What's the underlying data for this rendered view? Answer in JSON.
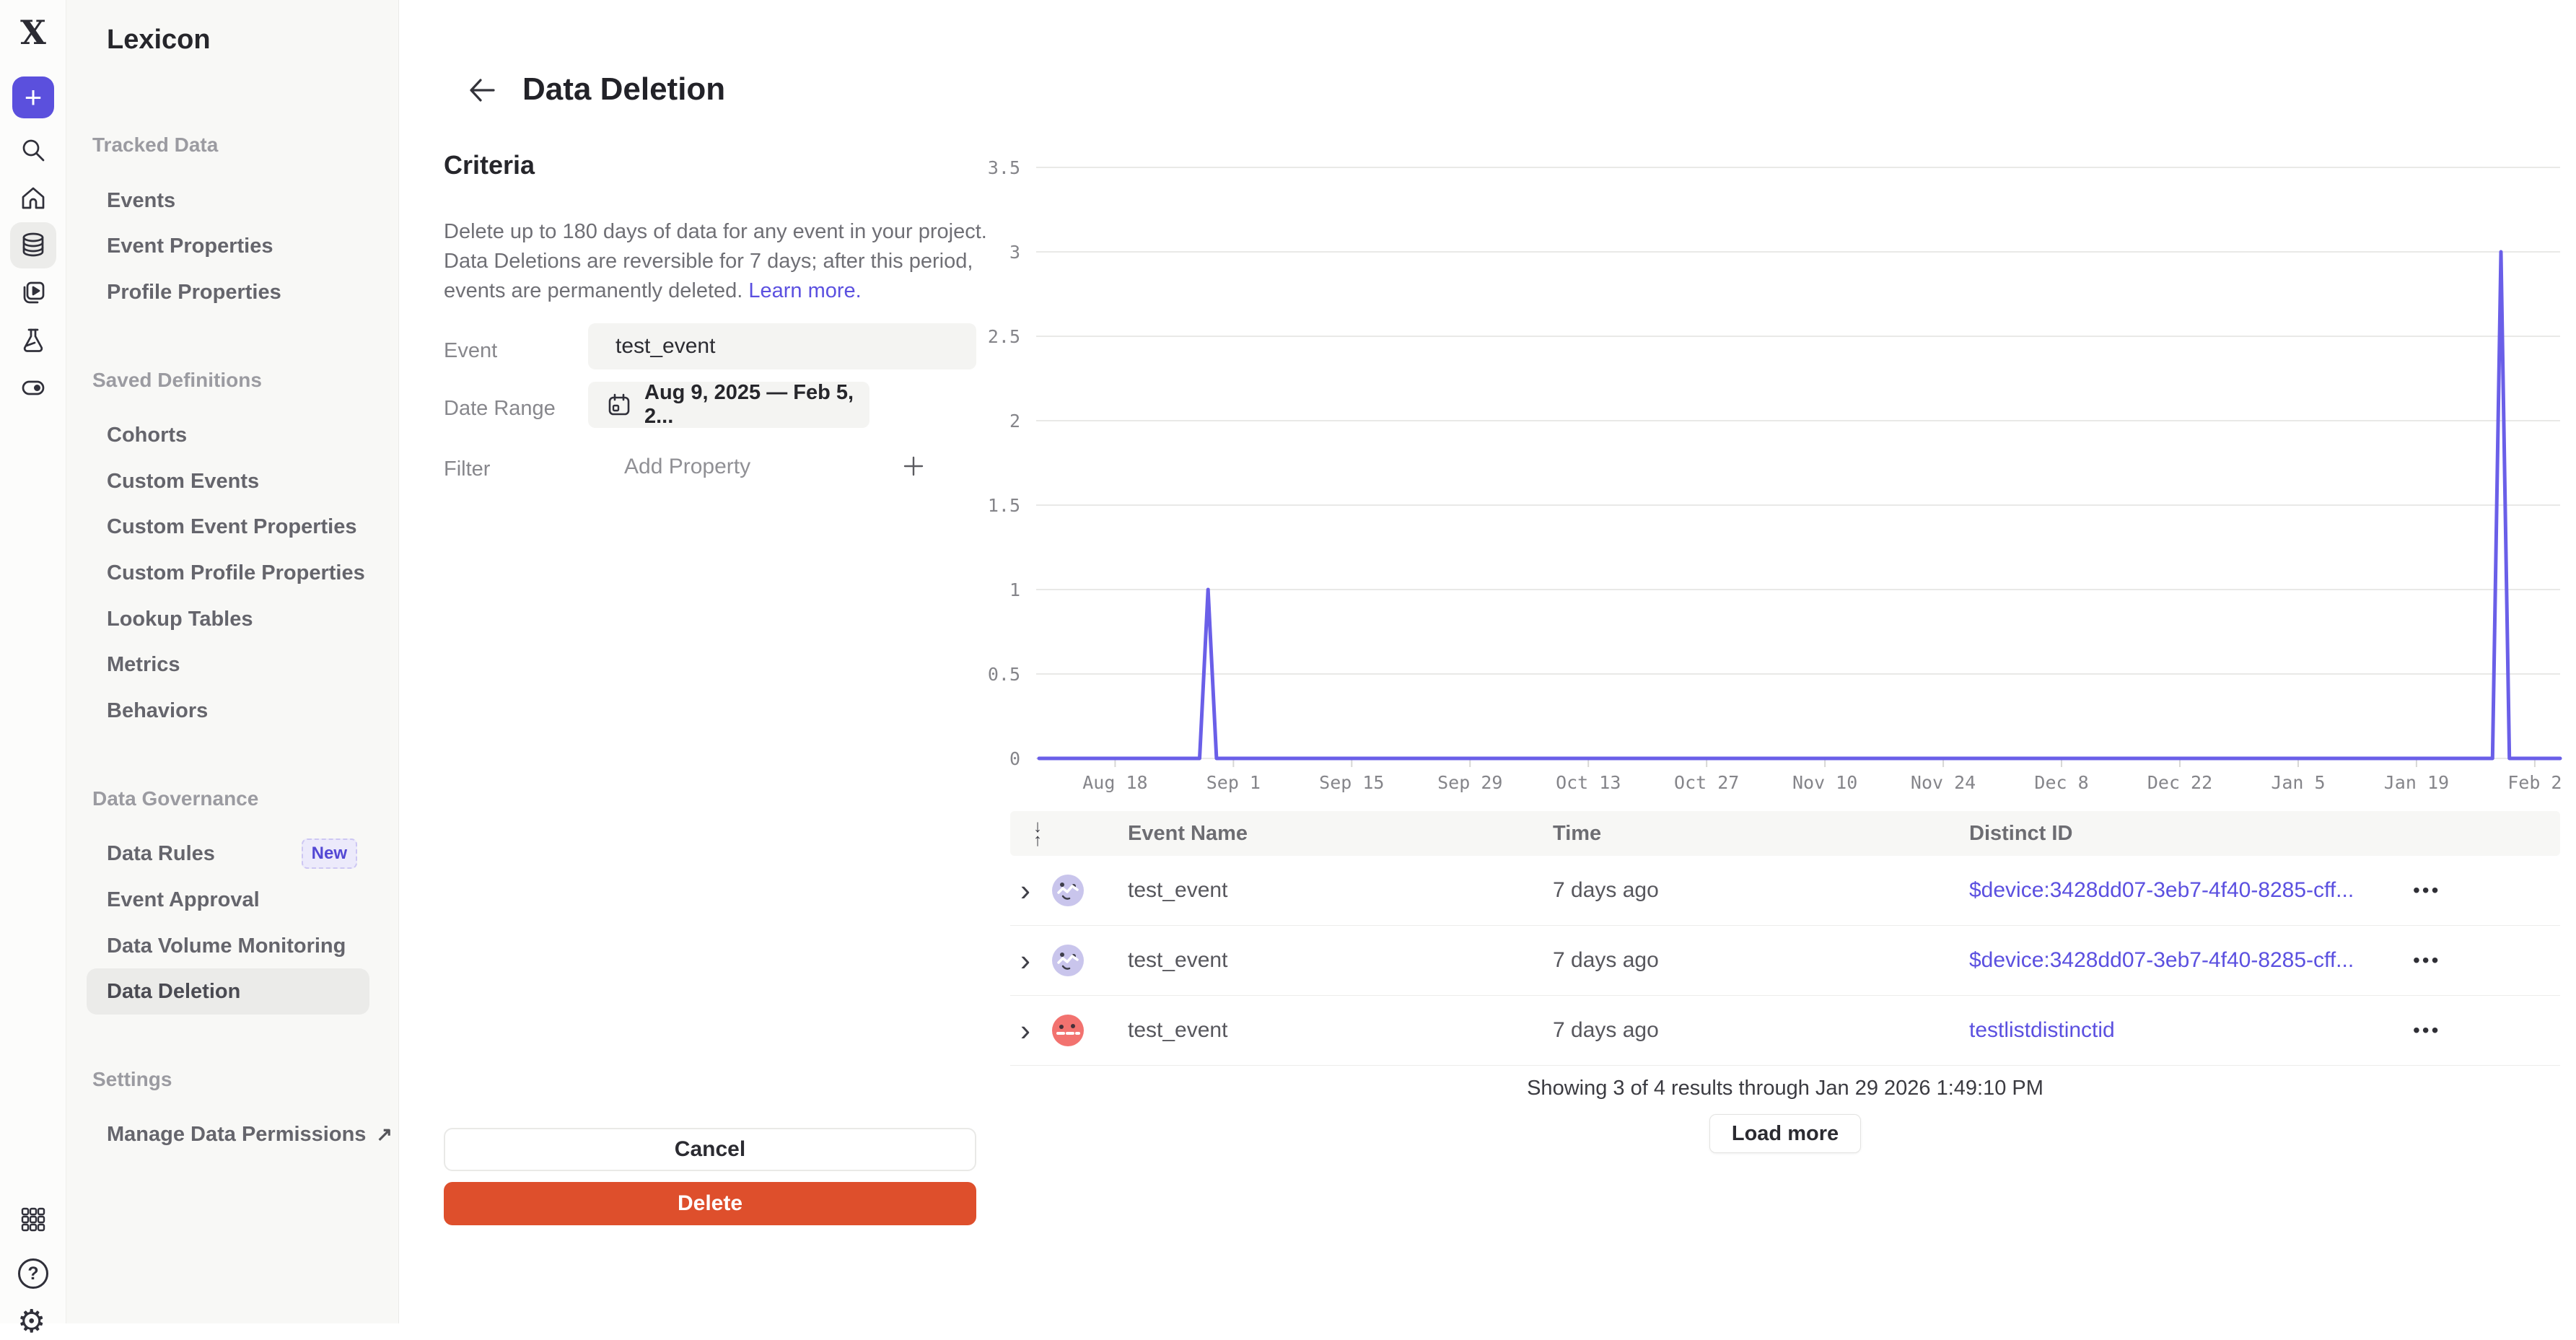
{
  "colors": {
    "accent_purple": "#5b50dd",
    "link_purple": "#5b50e0",
    "chart_line": "#6a5fe8",
    "delete_red": "#de4f2c",
    "new_badge_text": "#5348d4",
    "avatar_lavender": "#c9c5ec",
    "avatar_red": "#f2726f"
  },
  "icons": {
    "logo_glyph": "X",
    "plus": "+",
    "help": "?",
    "gear": "⚙",
    "external_link": "↗",
    "chevron_right": "›",
    "more_dots": "•••",
    "sort_down": "↓",
    "sort_up": "↑"
  },
  "sidebar": {
    "title": "Lexicon",
    "sections": [
      {
        "label": "Tracked Data",
        "items": [
          {
            "label": "Events"
          },
          {
            "label": "Event Properties"
          },
          {
            "label": "Profile Properties"
          }
        ]
      },
      {
        "label": "Saved Definitions",
        "items": [
          {
            "label": "Cohorts"
          },
          {
            "label": "Custom Events"
          },
          {
            "label": "Custom Event Properties"
          },
          {
            "label": "Custom Profile Properties"
          },
          {
            "label": "Lookup Tables"
          },
          {
            "label": "Metrics"
          },
          {
            "label": "Behaviors"
          }
        ]
      },
      {
        "label": "Data Governance",
        "items": [
          {
            "label": "Data Rules",
            "badge": "New"
          },
          {
            "label": "Event Approval"
          },
          {
            "label": "Data Volume Monitoring"
          },
          {
            "label": "Data Deletion",
            "selected": true
          }
        ]
      },
      {
        "label": "Settings",
        "items": [
          {
            "label": "Manage Data Permissions",
            "external": true
          }
        ]
      }
    ]
  },
  "header": {
    "title": "Data Deletion"
  },
  "criteria": {
    "heading": "Criteria",
    "description": "Delete up to 180 days of data for any event in your project. Data Deletions are reversible for 7 days; after this period, events are permanently deleted.",
    "learn_more": "Learn more.",
    "event_label": "Event",
    "event_value": "test_event",
    "date_range_label": "Date Range",
    "date_range_value": "Aug 9, 2025 — Feb 5, 2...",
    "filter_label": "Filter",
    "filter_placeholder": "Add Property",
    "cancel_label": "Cancel",
    "delete_label": "Delete"
  },
  "chart_data": {
    "type": "line",
    "title": "",
    "x_range": [
      "Aug 9, 2025",
      "Feb 5, 2026"
    ],
    "total_days": 180,
    "baseline_value": 0,
    "y_max": 3.5,
    "y_ticks": [
      0,
      0.5,
      1,
      1.5,
      2,
      2.5,
      3,
      3.5
    ],
    "x_ticks": [
      {
        "label": "Aug 18",
        "day": 9
      },
      {
        "label": "Sep 1",
        "day": 23
      },
      {
        "label": "Sep 15",
        "day": 37
      },
      {
        "label": "Sep 29",
        "day": 51
      },
      {
        "label": "Oct 13",
        "day": 65
      },
      {
        "label": "Oct 27",
        "day": 79
      },
      {
        "label": "Nov 10",
        "day": 93
      },
      {
        "label": "Nov 24",
        "day": 107
      },
      {
        "label": "Dec 8",
        "day": 121
      },
      {
        "label": "Dec 22",
        "day": 135
      },
      {
        "label": "Jan 5",
        "day": 149
      },
      {
        "label": "Jan 19",
        "day": 163
      },
      {
        "label": "Feb 2",
        "day": 177
      }
    ],
    "spikes": [
      {
        "date": "Aug 29, 2025",
        "day": 20,
        "value": 1
      },
      {
        "date": "Jan 29, 2026",
        "day": 173,
        "value": 3
      }
    ],
    "line_color": "#6a5fe8",
    "grid": "horizontal-only",
    "legend": "none"
  },
  "table": {
    "columns": [
      "Event Name",
      "Time",
      "Distinct ID"
    ],
    "rows": [
      {
        "event_name": "test_event",
        "time": "7 days ago",
        "distinct_id": "$device:3428dd07-3eb7-4f40-8285-cff...",
        "avatar": "lavender"
      },
      {
        "event_name": "test_event",
        "time": "7 days ago",
        "distinct_id": "$device:3428dd07-3eb7-4f40-8285-cff...",
        "avatar": "lavender"
      },
      {
        "event_name": "test_event",
        "time": "7 days ago",
        "distinct_id": "testlistdistinctid",
        "avatar": "red"
      }
    ],
    "footer": "Showing 3 of 4 results through Jan 29 2026 1:49:10 PM",
    "load_more_label": "Load more"
  }
}
